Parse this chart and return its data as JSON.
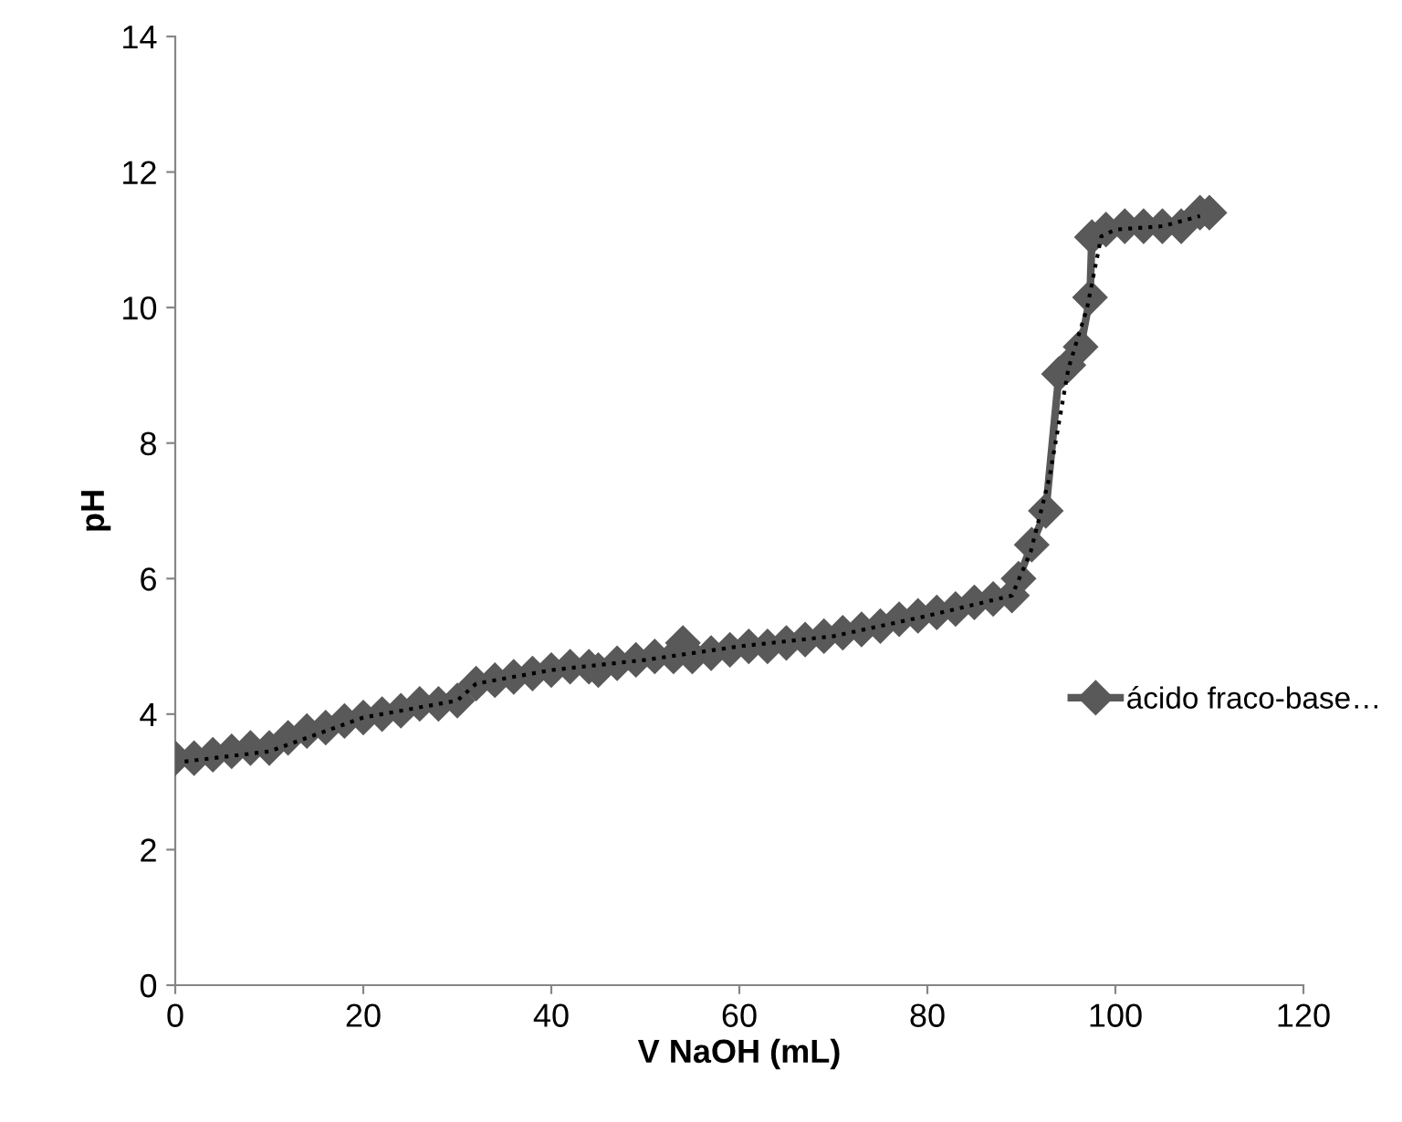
{
  "chart_data": {
    "type": "line",
    "xlabel": "V NaOH (mL)",
    "ylabel": "pH",
    "xlim": [
      0,
      120
    ],
    "xticks": [
      0,
      20,
      40,
      60,
      80,
      100,
      120
    ],
    "ylim": [
      0,
      14
    ],
    "yticks": [
      0,
      2,
      4,
      6,
      8,
      10,
      12,
      14
    ],
    "grid": false,
    "legend": "right",
    "marker": "diamond",
    "series": [
      {
        "name": "ácido fraco-base…",
        "color": "#595959",
        "line_style": "solid",
        "x": [
          0,
          2,
          4,
          6,
          8,
          10,
          12,
          14,
          16,
          18,
          20,
          22,
          24,
          26,
          28,
          30,
          32,
          34,
          36,
          38,
          40,
          42,
          44,
          45,
          47,
          49,
          51,
          53,
          54,
          55,
          57,
          59,
          61,
          63,
          65,
          67,
          69,
          71,
          73,
          75,
          77,
          79,
          81,
          83,
          85,
          87,
          89,
          89.7,
          91.1,
          92.6,
          94,
          95,
          96.3,
          97.3,
          97.5,
          99,
          101,
          103,
          105,
          107,
          109,
          110
        ],
        "values": [
          3.35,
          3.35,
          3.4,
          3.45,
          3.5,
          3.5,
          3.65,
          3.75,
          3.8,
          3.9,
          3.95,
          4.0,
          4.05,
          4.15,
          4.15,
          4.2,
          4.45,
          4.5,
          4.55,
          4.6,
          4.65,
          4.7,
          4.7,
          4.65,
          4.75,
          4.8,
          4.85,
          4.85,
          5.05,
          4.85,
          4.9,
          4.95,
          5.0,
          5.0,
          5.05,
          5.1,
          5.15,
          5.2,
          5.25,
          5.3,
          5.4,
          5.45,
          5.5,
          5.55,
          5.65,
          5.7,
          5.75,
          6.0,
          6.5,
          7.0,
          9.02,
          9.15,
          9.42,
          10.15,
          11.04,
          11.15,
          11.2,
          11.2,
          11.2,
          11.2,
          11.4,
          11.4
        ]
      },
      {
        "color": "#000000",
        "line_style": "dotted",
        "marker": "none",
        "x": [
          1,
          10,
          20,
          30,
          32,
          40,
          50,
          60,
          70,
          80,
          89,
          91,
          93,
          95,
          97,
          98.5,
          100,
          105,
          109
        ],
        "values": [
          3.3,
          3.45,
          3.95,
          4.2,
          4.45,
          4.65,
          4.8,
          5.0,
          5.15,
          5.45,
          5.75,
          6.4,
          7.5,
          9.1,
          10.0,
          11.05,
          11.15,
          11.2,
          11.35
        ]
      }
    ]
  }
}
